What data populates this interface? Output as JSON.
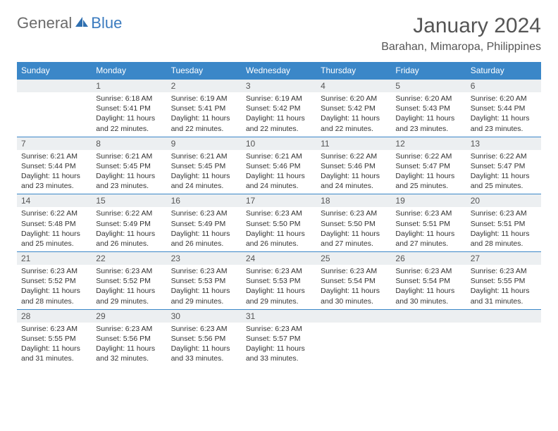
{
  "brand": {
    "part1": "General",
    "part2": "Blue"
  },
  "title": "January 2024",
  "location": "Barahan, Mimaropa, Philippines",
  "colors": {
    "header_bg": "#3b87c8",
    "header_text": "#ffffff",
    "daynum_bg": "#eceff1",
    "cell_border": "#3b87c8",
    "body_text": "#333333",
    "title_text": "#555555"
  },
  "layout": {
    "columns": 7,
    "rows": 5,
    "first_weekday": "Sunday"
  },
  "days_of_week": [
    "Sunday",
    "Monday",
    "Tuesday",
    "Wednesday",
    "Thursday",
    "Friday",
    "Saturday"
  ],
  "weeks": [
    [
      {
        "n": "",
        "sunrise": "",
        "sunset": "",
        "daylight": ""
      },
      {
        "n": "1",
        "sunrise": "Sunrise: 6:18 AM",
        "sunset": "Sunset: 5:41 PM",
        "daylight": "Daylight: 11 hours and 22 minutes."
      },
      {
        "n": "2",
        "sunrise": "Sunrise: 6:19 AM",
        "sunset": "Sunset: 5:41 PM",
        "daylight": "Daylight: 11 hours and 22 minutes."
      },
      {
        "n": "3",
        "sunrise": "Sunrise: 6:19 AM",
        "sunset": "Sunset: 5:42 PM",
        "daylight": "Daylight: 11 hours and 22 minutes."
      },
      {
        "n": "4",
        "sunrise": "Sunrise: 6:20 AM",
        "sunset": "Sunset: 5:42 PM",
        "daylight": "Daylight: 11 hours and 22 minutes."
      },
      {
        "n": "5",
        "sunrise": "Sunrise: 6:20 AM",
        "sunset": "Sunset: 5:43 PM",
        "daylight": "Daylight: 11 hours and 23 minutes."
      },
      {
        "n": "6",
        "sunrise": "Sunrise: 6:20 AM",
        "sunset": "Sunset: 5:44 PM",
        "daylight": "Daylight: 11 hours and 23 minutes."
      }
    ],
    [
      {
        "n": "7",
        "sunrise": "Sunrise: 6:21 AM",
        "sunset": "Sunset: 5:44 PM",
        "daylight": "Daylight: 11 hours and 23 minutes."
      },
      {
        "n": "8",
        "sunrise": "Sunrise: 6:21 AM",
        "sunset": "Sunset: 5:45 PM",
        "daylight": "Daylight: 11 hours and 23 minutes."
      },
      {
        "n": "9",
        "sunrise": "Sunrise: 6:21 AM",
        "sunset": "Sunset: 5:45 PM",
        "daylight": "Daylight: 11 hours and 24 minutes."
      },
      {
        "n": "10",
        "sunrise": "Sunrise: 6:21 AM",
        "sunset": "Sunset: 5:46 PM",
        "daylight": "Daylight: 11 hours and 24 minutes."
      },
      {
        "n": "11",
        "sunrise": "Sunrise: 6:22 AM",
        "sunset": "Sunset: 5:46 PM",
        "daylight": "Daylight: 11 hours and 24 minutes."
      },
      {
        "n": "12",
        "sunrise": "Sunrise: 6:22 AM",
        "sunset": "Sunset: 5:47 PM",
        "daylight": "Daylight: 11 hours and 25 minutes."
      },
      {
        "n": "13",
        "sunrise": "Sunrise: 6:22 AM",
        "sunset": "Sunset: 5:47 PM",
        "daylight": "Daylight: 11 hours and 25 minutes."
      }
    ],
    [
      {
        "n": "14",
        "sunrise": "Sunrise: 6:22 AM",
        "sunset": "Sunset: 5:48 PM",
        "daylight": "Daylight: 11 hours and 25 minutes."
      },
      {
        "n": "15",
        "sunrise": "Sunrise: 6:22 AM",
        "sunset": "Sunset: 5:49 PM",
        "daylight": "Daylight: 11 hours and 26 minutes."
      },
      {
        "n": "16",
        "sunrise": "Sunrise: 6:23 AM",
        "sunset": "Sunset: 5:49 PM",
        "daylight": "Daylight: 11 hours and 26 minutes."
      },
      {
        "n": "17",
        "sunrise": "Sunrise: 6:23 AM",
        "sunset": "Sunset: 5:50 PM",
        "daylight": "Daylight: 11 hours and 26 minutes."
      },
      {
        "n": "18",
        "sunrise": "Sunrise: 6:23 AM",
        "sunset": "Sunset: 5:50 PM",
        "daylight": "Daylight: 11 hours and 27 minutes."
      },
      {
        "n": "19",
        "sunrise": "Sunrise: 6:23 AM",
        "sunset": "Sunset: 5:51 PM",
        "daylight": "Daylight: 11 hours and 27 minutes."
      },
      {
        "n": "20",
        "sunrise": "Sunrise: 6:23 AM",
        "sunset": "Sunset: 5:51 PM",
        "daylight": "Daylight: 11 hours and 28 minutes."
      }
    ],
    [
      {
        "n": "21",
        "sunrise": "Sunrise: 6:23 AM",
        "sunset": "Sunset: 5:52 PM",
        "daylight": "Daylight: 11 hours and 28 minutes."
      },
      {
        "n": "22",
        "sunrise": "Sunrise: 6:23 AM",
        "sunset": "Sunset: 5:52 PM",
        "daylight": "Daylight: 11 hours and 29 minutes."
      },
      {
        "n": "23",
        "sunrise": "Sunrise: 6:23 AM",
        "sunset": "Sunset: 5:53 PM",
        "daylight": "Daylight: 11 hours and 29 minutes."
      },
      {
        "n": "24",
        "sunrise": "Sunrise: 6:23 AM",
        "sunset": "Sunset: 5:53 PM",
        "daylight": "Daylight: 11 hours and 29 minutes."
      },
      {
        "n": "25",
        "sunrise": "Sunrise: 6:23 AM",
        "sunset": "Sunset: 5:54 PM",
        "daylight": "Daylight: 11 hours and 30 minutes."
      },
      {
        "n": "26",
        "sunrise": "Sunrise: 6:23 AM",
        "sunset": "Sunset: 5:54 PM",
        "daylight": "Daylight: 11 hours and 30 minutes."
      },
      {
        "n": "27",
        "sunrise": "Sunrise: 6:23 AM",
        "sunset": "Sunset: 5:55 PM",
        "daylight": "Daylight: 11 hours and 31 minutes."
      }
    ],
    [
      {
        "n": "28",
        "sunrise": "Sunrise: 6:23 AM",
        "sunset": "Sunset: 5:55 PM",
        "daylight": "Daylight: 11 hours and 31 minutes."
      },
      {
        "n": "29",
        "sunrise": "Sunrise: 6:23 AM",
        "sunset": "Sunset: 5:56 PM",
        "daylight": "Daylight: 11 hours and 32 minutes."
      },
      {
        "n": "30",
        "sunrise": "Sunrise: 6:23 AM",
        "sunset": "Sunset: 5:56 PM",
        "daylight": "Daylight: 11 hours and 33 minutes."
      },
      {
        "n": "31",
        "sunrise": "Sunrise: 6:23 AM",
        "sunset": "Sunset: 5:57 PM",
        "daylight": "Daylight: 11 hours and 33 minutes."
      },
      {
        "n": "",
        "sunrise": "",
        "sunset": "",
        "daylight": ""
      },
      {
        "n": "",
        "sunrise": "",
        "sunset": "",
        "daylight": ""
      },
      {
        "n": "",
        "sunrise": "",
        "sunset": "",
        "daylight": ""
      }
    ]
  ]
}
